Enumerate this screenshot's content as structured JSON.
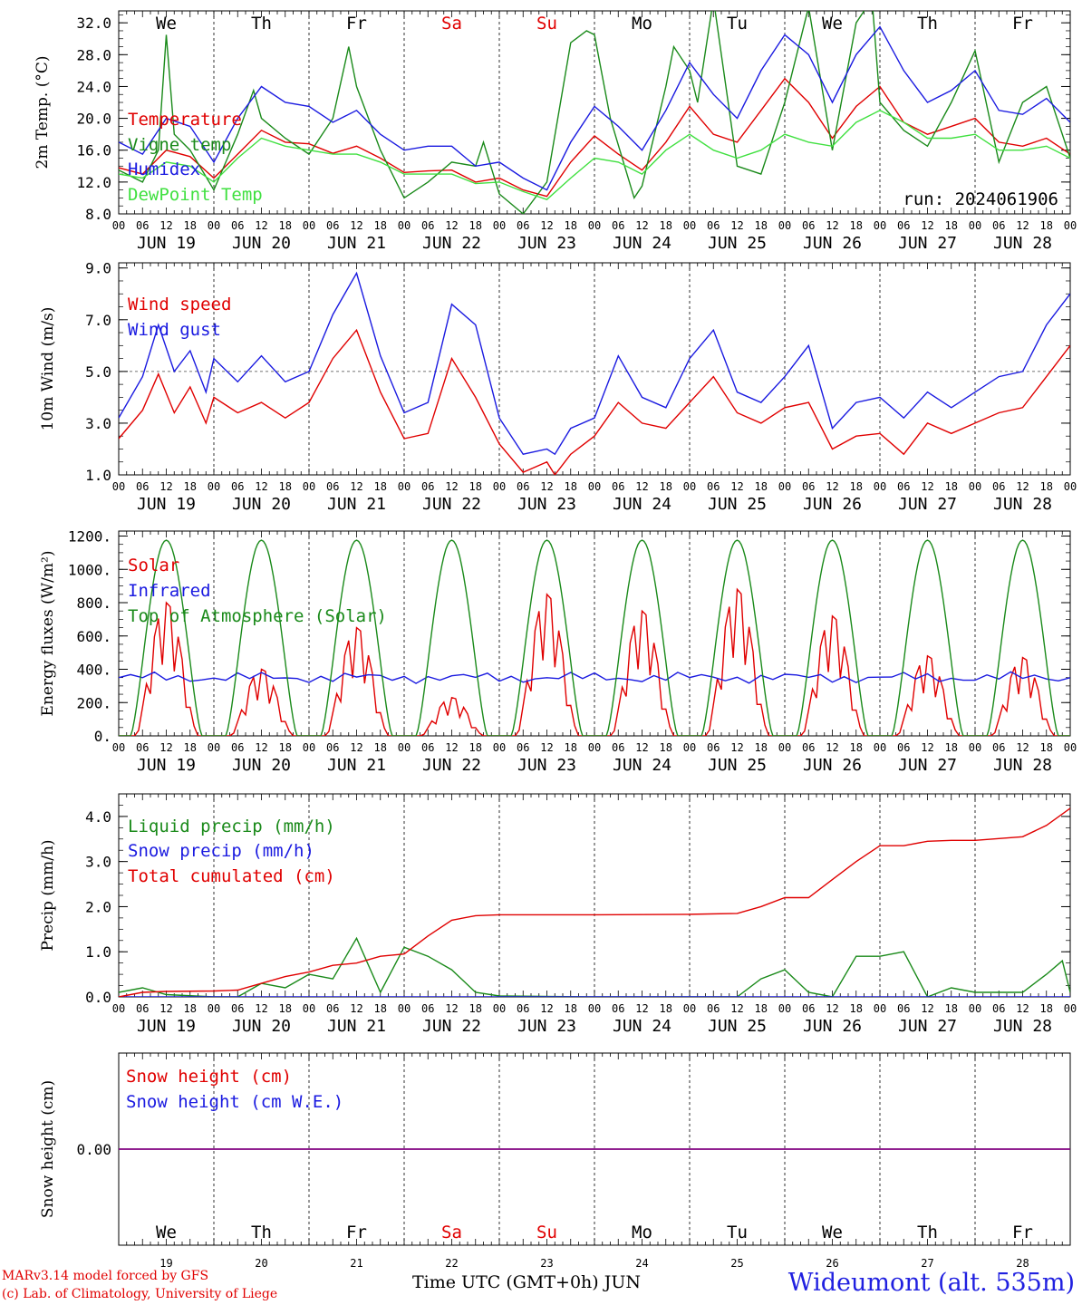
{
  "colors": {
    "red": "#e00000",
    "green": "#1a8a1a",
    "blue": "#1a1ae0",
    "lightgreen": "#40e040",
    "purple": "#800080"
  },
  "day_names": [
    "We",
    "Th",
    "Fr",
    "Sa",
    "Su",
    "Mo",
    "Tu",
    "We",
    "Th",
    "Fr"
  ],
  "weekend_days": [
    3,
    4
  ],
  "day_labels": [
    "JUN 19",
    "JUN 20",
    "JUN 21",
    "JUN 22",
    "JUN 23",
    "JUN 24",
    "JUN 25",
    "JUN 26",
    "JUN 27",
    "JUN 28"
  ],
  "hour_ticks": [
    "00",
    "06",
    "12",
    "18"
  ],
  "last_tick": "00",
  "bottom_day_numbers": [
    "19",
    "20",
    "21",
    "22",
    "23",
    "24",
    "25",
    "26",
    "27",
    "28"
  ],
  "run_label": "run: 2024061906",
  "footer": {
    "model": "MARv3.14 model forced by GFS",
    "lab": "(c) Lab. of Climatology, University of Liege",
    "xaxis": "Time UTC (GMT+0h) JUN",
    "station": "Wideumont (alt. 535m)"
  },
  "chart_data": [
    {
      "type": "line",
      "id": "temp",
      "ylabel": "2m Temp. (°C)",
      "ylim": [
        8,
        33.5
      ],
      "ticks": [
        "8.0",
        "12.0",
        "16.0",
        "20.0",
        "24.0",
        "28.0",
        "32.0"
      ],
      "tick_values": [
        8,
        12,
        16,
        20,
        24,
        28,
        32
      ],
      "dashed_h": [],
      "x_unit": "hours since 2024-06-19 00 UTC",
      "series": [
        {
          "name": "Temperature",
          "color": "red",
          "x": [
            0,
            6,
            12,
            18,
            24,
            30,
            36,
            42,
            48,
            54,
            60,
            66,
            72,
            78,
            84,
            90,
            96,
            102,
            108,
            114,
            120,
            126,
            132,
            138,
            144,
            150,
            156,
            162,
            168,
            174,
            180,
            186,
            192,
            198,
            204,
            210,
            216,
            222,
            228,
            234,
            240
          ],
          "y": [
            13.8,
            13.0,
            16.0,
            15.2,
            12.5,
            15.5,
            18.5,
            17.0,
            16.8,
            15.6,
            16.5,
            15.0,
            13.2,
            13.4,
            13.5,
            12.0,
            12.5,
            11.0,
            10.2,
            14.5,
            17.8,
            15.5,
            13.5,
            17.0,
            21.5,
            18.0,
            17.0,
            21.0,
            25.0,
            22.0,
            17.5,
            21.5,
            24.0,
            19.5,
            18.0,
            19.0,
            20.0,
            17.0,
            16.5,
            17.5,
            15.5
          ]
        },
        {
          "name": "Vigne temp",
          "color": "green",
          "x": [
            0,
            6,
            10,
            12,
            14,
            18,
            24,
            30,
            34,
            36,
            42,
            48,
            54,
            58,
            60,
            66,
            72,
            78,
            84,
            90,
            92,
            96,
            102,
            108,
            114,
            118,
            120,
            124,
            130,
            132,
            138,
            140,
            144,
            146,
            150,
            156,
            162,
            168,
            174,
            180,
            186,
            190,
            192,
            198,
            204,
            210,
            216,
            222,
            228,
            234,
            240
          ],
          "y": [
            13.5,
            12.0,
            16.0,
            30.5,
            18.0,
            16.0,
            11.0,
            18.0,
            23.5,
            20.0,
            17.5,
            15.5,
            20.0,
            29.0,
            24.0,
            16.0,
            10.0,
            12.0,
            14.5,
            14.0,
            17.0,
            10.5,
            8.0,
            12.0,
            29.5,
            31.0,
            30.5,
            20.0,
            10.0,
            11.5,
            24.0,
            29.0,
            26.0,
            22.0,
            35.0,
            14.0,
            13.0,
            22.0,
            34.0,
            16.0,
            32.0,
            35.0,
            22.0,
            18.5,
            16.5,
            22.0,
            28.5,
            14.5,
            22.0,
            24.0,
            15.0
          ]
        },
        {
          "name": "Humidex",
          "color": "blue",
          "x": [
            0,
            6,
            12,
            18,
            24,
            30,
            36,
            42,
            48,
            54,
            60,
            66,
            72,
            78,
            84,
            90,
            96,
            102,
            108,
            114,
            120,
            126,
            132,
            138,
            144,
            150,
            156,
            162,
            168,
            174,
            180,
            186,
            192,
            198,
            204,
            210,
            216,
            222,
            228,
            234,
            240
          ],
          "y": [
            17.0,
            15.5,
            20.0,
            19.0,
            14.5,
            20.0,
            24.0,
            22.0,
            21.5,
            19.5,
            21.0,
            18.0,
            16.0,
            16.5,
            16.5,
            14.0,
            14.5,
            12.5,
            11.0,
            17.0,
            21.5,
            19.0,
            16.0,
            21.0,
            27.0,
            23.0,
            20.0,
            26.0,
            30.5,
            28.0,
            22.0,
            28.0,
            31.5,
            26.0,
            22.0,
            23.5,
            26.0,
            21.0,
            20.5,
            22.5,
            19.5
          ]
        },
        {
          "name": "DewPoint Temp",
          "color": "lightgreen",
          "x": [
            0,
            6,
            12,
            18,
            24,
            30,
            36,
            42,
            48,
            54,
            60,
            66,
            72,
            78,
            84,
            90,
            96,
            102,
            108,
            114,
            120,
            126,
            132,
            138,
            144,
            150,
            156,
            162,
            168,
            174,
            180,
            186,
            192,
            198,
            204,
            210,
            216,
            222,
            228,
            234,
            240
          ],
          "y": [
            13.0,
            12.5,
            14.5,
            14.0,
            12.0,
            15.0,
            17.5,
            16.5,
            16.0,
            15.5,
            15.5,
            14.5,
            13.0,
            13.0,
            13.0,
            11.8,
            12.0,
            10.8,
            9.8,
            12.5,
            15.0,
            14.5,
            13.0,
            16.0,
            18.0,
            16.0,
            15.0,
            16.0,
            18.0,
            17.0,
            16.5,
            19.5,
            21.0,
            19.5,
            17.5,
            17.5,
            18.0,
            16.0,
            16.0,
            16.5,
            15.0
          ]
        }
      ]
    },
    {
      "type": "line",
      "id": "wind",
      "ylabel": "10m Wind (m/s)",
      "ylim": [
        1,
        9.2
      ],
      "ticks": [
        "1.0",
        "3.0",
        "5.0",
        "7.0",
        "9.0"
      ],
      "tick_values": [
        1,
        3,
        5,
        7,
        9
      ],
      "dashed_h": [
        5
      ],
      "series": [
        {
          "name": "Wind speed",
          "color": "red",
          "x": [
            0,
            6,
            10,
            14,
            18,
            22,
            24,
            30,
            36,
            42,
            48,
            54,
            60,
            66,
            72,
            78,
            84,
            90,
            96,
            102,
            108,
            110,
            114,
            120,
            126,
            132,
            138,
            144,
            150,
            156,
            162,
            168,
            174,
            180,
            186,
            192,
            198,
            204,
            210,
            216,
            222,
            228,
            234,
            240
          ],
          "y": [
            2.4,
            3.5,
            4.9,
            3.4,
            4.4,
            3.0,
            4.0,
            3.4,
            3.8,
            3.2,
            3.8,
            5.5,
            6.6,
            4.2,
            2.4,
            2.6,
            5.5,
            4.0,
            2.2,
            1.1,
            1.5,
            1.0,
            1.8,
            2.5,
            3.8,
            3.0,
            2.8,
            3.8,
            4.8,
            3.4,
            3.0,
            3.6,
            3.8,
            2.0,
            2.5,
            2.6,
            1.8,
            3.0,
            2.6,
            3.0,
            3.4,
            3.6,
            4.8,
            6.0
          ]
        },
        {
          "name": "Wind gust",
          "color": "blue",
          "x": [
            0,
            6,
            10,
            14,
            18,
            22,
            24,
            30,
            36,
            42,
            48,
            54,
            60,
            66,
            72,
            78,
            84,
            90,
            96,
            102,
            108,
            110,
            114,
            120,
            126,
            132,
            138,
            144,
            150,
            156,
            162,
            168,
            174,
            180,
            186,
            192,
            198,
            204,
            210,
            216,
            222,
            228,
            234,
            240
          ],
          "y": [
            3.2,
            4.8,
            6.8,
            5.0,
            5.8,
            4.2,
            5.5,
            4.6,
            5.6,
            4.6,
            5.0,
            7.2,
            8.8,
            5.6,
            3.4,
            3.8,
            7.6,
            6.8,
            3.2,
            1.8,
            2.0,
            1.8,
            2.8,
            3.2,
            5.6,
            4.0,
            3.6,
            5.5,
            6.6,
            4.2,
            3.8,
            4.8,
            6.0,
            2.8,
            3.8,
            4.0,
            3.2,
            4.2,
            3.6,
            4.2,
            4.8,
            5.0,
            6.8,
            8.0
          ]
        }
      ]
    },
    {
      "type": "line",
      "id": "energy",
      "ylabel": "Energy fluxes (W/m²)",
      "ylim": [
        0,
        1230
      ],
      "ticks": [
        "0.",
        "200.",
        "400.",
        "600.",
        "800.",
        "1000.",
        "1200."
      ],
      "tick_values": [
        0,
        200,
        400,
        600,
        800,
        1000,
        1200
      ],
      "dashed_h": [],
      "series": [
        {
          "name": "Solar",
          "color": "red",
          "solar_peaks": [
            800,
            400,
            650,
            230,
            850,
            750,
            880,
            720,
            480,
            470
          ]
        },
        {
          "name": "Infrared",
          "color": "blue",
          "level": 350
        },
        {
          "name": "Top of Atmosphere (Solar)",
          "color": "green",
          "toa_peak": 1175
        }
      ]
    },
    {
      "type": "line",
      "id": "precip",
      "ylabel": "Precip (mm/h)",
      "ylim": [
        0,
        4.5
      ],
      "ticks": [
        "0.0",
        "1.0",
        "2.0",
        "3.0",
        "4.0"
      ],
      "tick_values": [
        0,
        1,
        2,
        3,
        4
      ],
      "dashed_h": [],
      "series": [
        {
          "name": "Liquid precip (mm/h)",
          "color": "green",
          "x": [
            0,
            6,
            12,
            24,
            30,
            36,
            42,
            48,
            54,
            60,
            66,
            72,
            78,
            84,
            90,
            96,
            120,
            144,
            156,
            162,
            168,
            174,
            180,
            186,
            192,
            198,
            204,
            210,
            216,
            228,
            234,
            238,
            240
          ],
          "y": [
            0.1,
            0.2,
            0.05,
            0,
            0,
            0.3,
            0.2,
            0.5,
            0.4,
            1.3,
            0.1,
            1.1,
            0.9,
            0.6,
            0.1,
            0.02,
            0,
            0,
            0,
            0.4,
            0.6,
            0.1,
            0,
            0.9,
            0.9,
            1.0,
            0,
            0.2,
            0.1,
            0.1,
            0.5,
            0.8,
            0.1
          ]
        },
        {
          "name": "Snow precip (mm/h)",
          "color": "blue",
          "x": [
            0,
            240
          ],
          "y": [
            0,
            0
          ]
        },
        {
          "name": "Total cumulated (cm)",
          "color": "red",
          "x": [
            0,
            6,
            12,
            24,
            30,
            36,
            42,
            48,
            54,
            60,
            66,
            72,
            78,
            84,
            90,
            96,
            120,
            144,
            156,
            162,
            168,
            174,
            180,
            186,
            192,
            198,
            204,
            210,
            216,
            228,
            234,
            240
          ],
          "y": [
            0,
            0.1,
            0.12,
            0.13,
            0.15,
            0.3,
            0.45,
            0.55,
            0.7,
            0.75,
            0.9,
            0.95,
            1.35,
            1.7,
            1.8,
            1.82,
            1.82,
            1.83,
            1.85,
            2.0,
            2.2,
            2.2,
            2.6,
            3.0,
            3.35,
            3.35,
            3.45,
            3.47,
            3.47,
            3.55,
            3.8,
            4.18
          ]
        }
      ]
    },
    {
      "type": "line",
      "id": "snow",
      "ylabel": "Snow height (cm)",
      "ylim": [
        -1,
        1
      ],
      "ticks": [
        "0.00"
      ],
      "tick_values": [
        0
      ],
      "dashed_h": [],
      "series": [
        {
          "name": "Snow height (cm)",
          "color": "red",
          "x": [
            0,
            240
          ],
          "y": [
            0,
            0
          ]
        },
        {
          "name": "Snow height (cm W.E.)",
          "color": "blue",
          "x": [
            0,
            240
          ],
          "y": [
            0,
            0
          ]
        }
      ]
    }
  ]
}
